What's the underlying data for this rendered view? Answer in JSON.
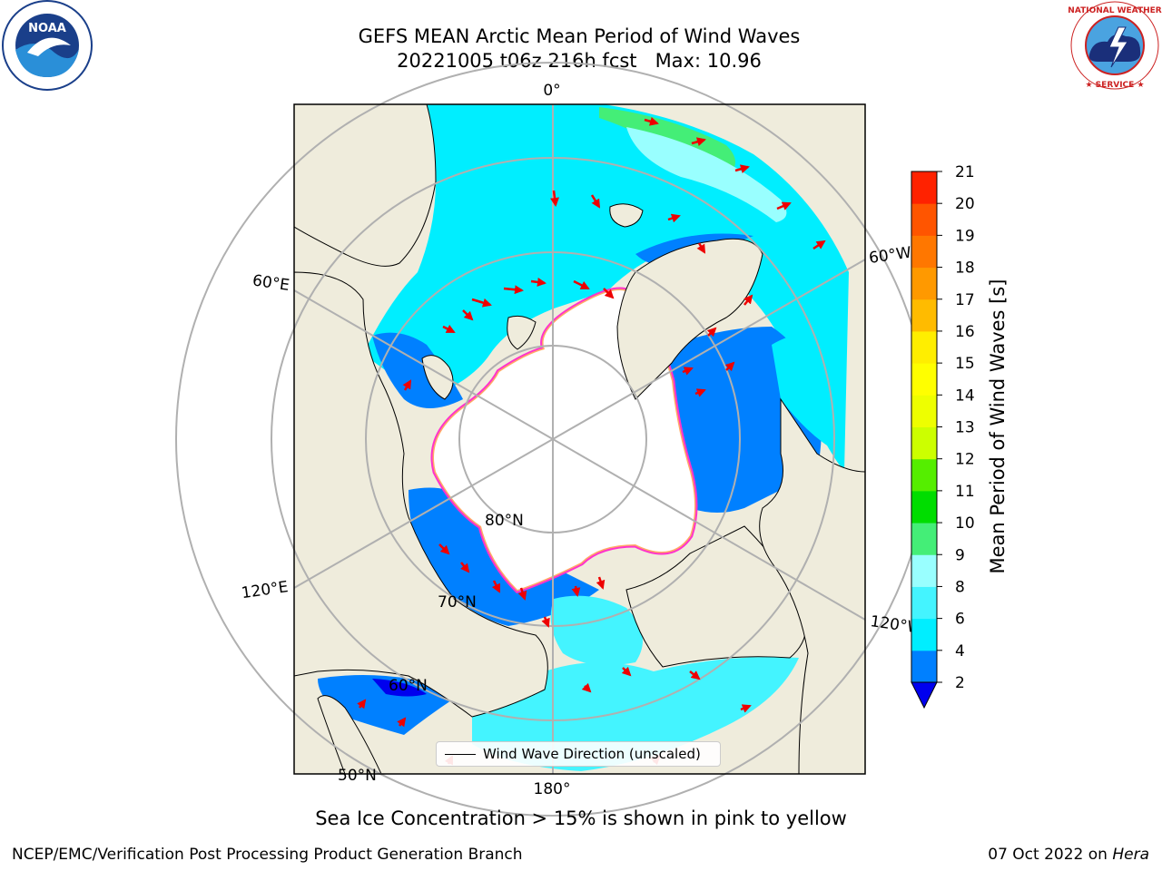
{
  "title": {
    "line1": "GEFS MEAN Arctic Mean Period of Wind Waves",
    "line2": "20221005 t06z 216h fcst   Max: 10.96"
  },
  "logos": {
    "left": "NOAA",
    "right": "NATIONAL WEATHER SERVICE"
  },
  "map": {
    "projection": "north-polar-stereographic",
    "longitude_labels": [
      "0°",
      "60°W",
      "120°W",
      "180°",
      "120°E",
      "60°E"
    ],
    "latitude_labels": [
      "80°N",
      "70°N",
      "60°N",
      "50°N"
    ],
    "colors": {
      "land": "#efecdc",
      "ice_free": "#ffffff",
      "ice_edge": [
        "#ff33cc",
        "#ffaa66",
        "#ffee55"
      ],
      "arrow": "#ee0000",
      "grid": "#b0b0b0"
    }
  },
  "colorbar": {
    "label": "Mean Period of Wind Waves [s]",
    "ticks": [
      "2",
      "4",
      "6",
      "8",
      "9",
      "10",
      "11",
      "12",
      "13",
      "14",
      "15",
      "16",
      "17",
      "18",
      "19",
      "20",
      "21"
    ],
    "bins": [
      {
        "from": 2,
        "to": 4,
        "color": "#0080ff"
      },
      {
        "from": 4,
        "to": 6,
        "color": "#00eeff"
      },
      {
        "from": 6,
        "to": 8,
        "color": "#44f4ff"
      },
      {
        "from": 8,
        "to": 9,
        "color": "#99ffff"
      },
      {
        "from": 9,
        "to": 10,
        "color": "#44ee77"
      },
      {
        "from": 10,
        "to": 11,
        "color": "#00dd00"
      },
      {
        "from": 11,
        "to": 12,
        "color": "#55ee00"
      },
      {
        "from": 12,
        "to": 13,
        "color": "#ccff00"
      },
      {
        "from": 13,
        "to": 14,
        "color": "#eeff00"
      },
      {
        "from": 14,
        "to": 15,
        "color": "#ffff00"
      },
      {
        "from": 15,
        "to": 16,
        "color": "#ffee00"
      },
      {
        "from": 16,
        "to": 17,
        "color": "#ffbb00"
      },
      {
        "from": 17,
        "to": 18,
        "color": "#ff9900"
      },
      {
        "from": 18,
        "to": 19,
        "color": "#ff7700"
      },
      {
        "from": 19,
        "to": 20,
        "color": "#ff5500"
      },
      {
        "from": 20,
        "to": 21,
        "color": "#ff2200"
      }
    ],
    "extend_min_color": "#0000ee"
  },
  "legend": {
    "label": "Wind Wave Direction (unscaled)"
  },
  "caption": "Sea Ice Concentration > 15% is shown in pink to yellow",
  "footer": {
    "left": "NCEP/EMC/Verification Post Processing Product Generation Branch",
    "date": "07 Oct 2022 on",
    "machine": "Hera"
  }
}
